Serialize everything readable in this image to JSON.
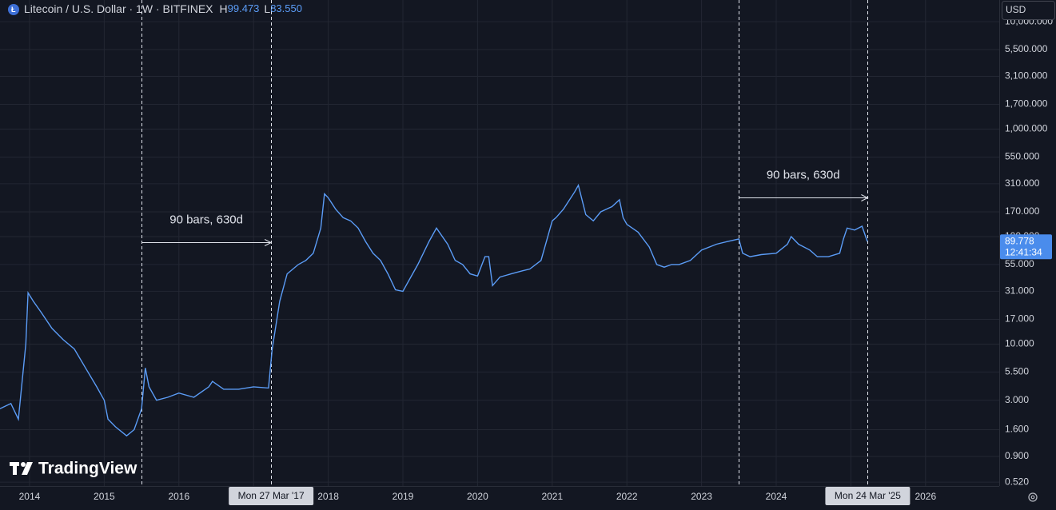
{
  "header": {
    "title": "Litecoin / U.S. Dollar · 1W · BITFINEX",
    "high_label": "H",
    "high": 99.473,
    "low_label": "L",
    "low": {
      "value": 83.55,
      "label": "83.550"
    },
    "currency": "USD"
  },
  "chart_data": {
    "type": "line",
    "log_scale": true,
    "grid": true,
    "color": "#5b9cf6",
    "x": [
      2013.6,
      2013.75,
      2013.85,
      2013.95,
      2013.98,
      2014.05,
      2014.15,
      2014.3,
      2014.45,
      2014.6,
      2014.75,
      2014.9,
      2015.0,
      2015.05,
      2015.15,
      2015.3,
      2015.4,
      2015.5,
      2015.55,
      2015.6,
      2015.7,
      2015.85,
      2016.0,
      2016.2,
      2016.4,
      2016.45,
      2016.6,
      2016.8,
      2017.0,
      2017.2,
      2017.25,
      2017.35,
      2017.45,
      2017.6,
      2017.7,
      2017.8,
      2017.9,
      2017.95,
      2018.0,
      2018.1,
      2018.2,
      2018.3,
      2018.4,
      2018.5,
      2018.6,
      2018.7,
      2018.8,
      2018.9,
      2019.0,
      2019.2,
      2019.35,
      2019.45,
      2019.6,
      2019.7,
      2019.8,
      2019.9,
      2020.0,
      2020.1,
      2020.15,
      2020.2,
      2020.3,
      2020.45,
      2020.6,
      2020.7,
      2020.85,
      2021.0,
      2021.05,
      2021.15,
      2021.3,
      2021.35,
      2021.45,
      2021.55,
      2021.65,
      2021.8,
      2021.9,
      2021.95,
      2022.0,
      2022.15,
      2022.3,
      2022.4,
      2022.5,
      2022.6,
      2022.7,
      2022.85,
      2023.0,
      2023.2,
      2023.35,
      2023.5,
      2023.55,
      2023.65,
      2023.8,
      2024.0,
      2024.15,
      2024.2,
      2024.3,
      2024.45,
      2024.55,
      2024.7,
      2024.85,
      2024.9,
      2024.95,
      2025.05,
      2025.15,
      2025.22
    ],
    "values": [
      2.5,
      2.8,
      2,
      10,
      30,
      25,
      20,
      14,
      11,
      9,
      6,
      4,
      3,
      2,
      1.7,
      1.4,
      1.6,
      2.5,
      6,
      4,
      3,
      3.2,
      3.5,
      3.2,
      4,
      4.5,
      3.8,
      3.8,
      4,
      3.9,
      9,
      25,
      45,
      55,
      60,
      70,
      120,
      250,
      230,
      180,
      150,
      140,
      120,
      90,
      70,
      60,
      45,
      32,
      31,
      55,
      90,
      120,
      85,
      60,
      55,
      45,
      43,
      65,
      65,
      35,
      42,
      45,
      48,
      50,
      60,
      140,
      150,
      180,
      260,
      300,
      160,
      140,
      170,
      190,
      220,
      150,
      130,
      110,
      80,
      55,
      52,
      55,
      55,
      60,
      75,
      85,
      90,
      95,
      70,
      65,
      68,
      70,
      85,
      100,
      85,
      75,
      65,
      65,
      70,
      95,
      120,
      115,
      125,
      90
    ],
    "xlim": [
      2013.604,
      2026.987
    ],
    "xticks": [
      2014,
      2015,
      2016,
      2017,
      2018,
      2019,
      2020,
      2021,
      2022,
      2023,
      2024,
      2025,
      2026
    ],
    "ylim": [
      0.478,
      15900
    ],
    "yticks": [
      {
        "value": 0.52,
        "label": "0.520"
      },
      {
        "value": 0.9,
        "label": "0.900"
      },
      {
        "value": 1.6,
        "label": "1.600"
      },
      {
        "value": 3,
        "label": "3.000"
      },
      {
        "value": 5.5,
        "label": "5.500"
      },
      {
        "value": 10,
        "label": "10.000"
      },
      {
        "value": 17,
        "label": "17.000"
      },
      {
        "value": 31,
        "label": "31.000"
      },
      {
        "value": 55,
        "label": "55.000"
      },
      {
        "value": 100,
        "label": "100.000"
      },
      {
        "value": 170,
        "label": "170.000"
      },
      {
        "value": 310,
        "label": "310.000"
      },
      {
        "value": 550,
        "label": "550.000"
      },
      {
        "value": 1000,
        "label": "1,000.000"
      },
      {
        "value": 1700,
        "label": "1,700.000"
      },
      {
        "value": 3100,
        "label": "3,100.000"
      },
      {
        "value": 5500,
        "label": "5,500.000"
      },
      {
        "value": 10000,
        "label": "10,000.000"
      }
    ],
    "ranges": [
      {
        "label": "90 bars, 630d",
        "from": 2015.5,
        "to": 2017.235,
        "price": 89,
        "date_label": "Mon 27 Mar '17"
      },
      {
        "label": "90 bars, 630d",
        "from": 2023.497,
        "to": 2025.225,
        "price": 232,
        "date_label": "Mon 24 Mar '25"
      }
    ],
    "last_price": 89.778,
    "countdown": "12:41:34",
    "watermark": "TradingView"
  }
}
